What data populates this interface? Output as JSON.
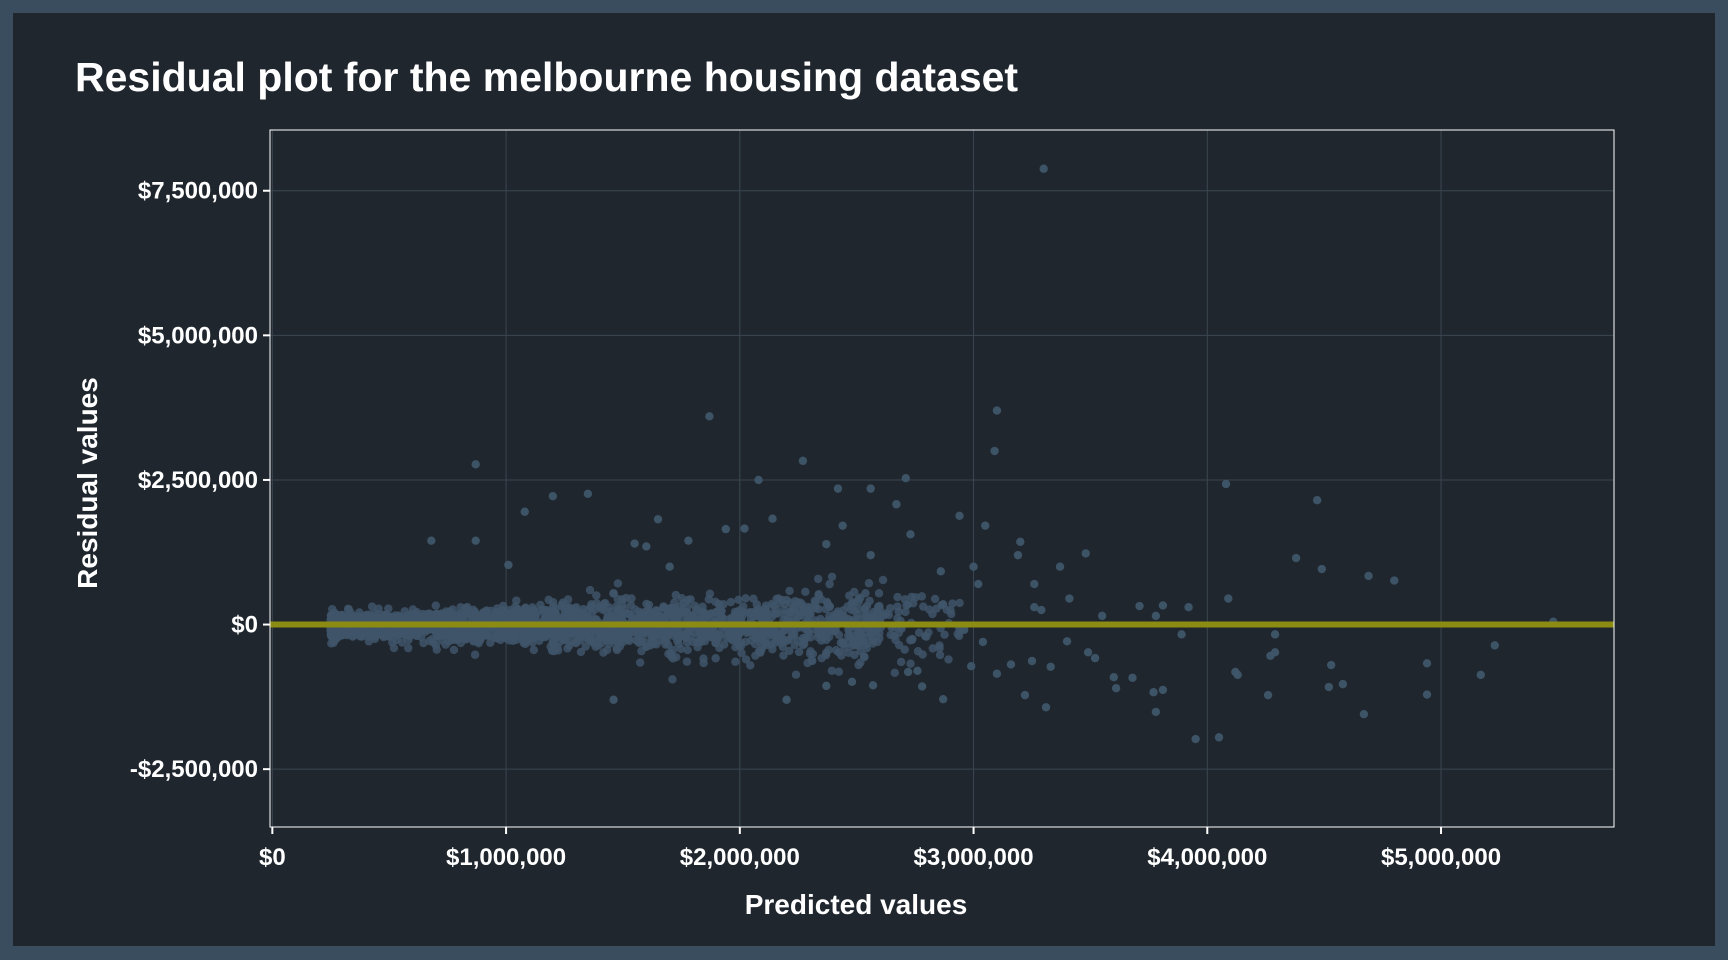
{
  "chart_data": {
    "type": "scatter",
    "title": "Residual plot for the melbourne housing dataset",
    "xlabel": "Predicted values",
    "ylabel": "Residual values",
    "xlim": [
      -10000,
      5740000
    ],
    "ylim": [
      -3500000,
      8550000
    ],
    "x_ticks": [
      0,
      1000000,
      2000000,
      3000000,
      4000000,
      5000000
    ],
    "x_tick_labels": [
      "$0",
      "$1,000,000",
      "$2,000,000",
      "$3,000,000",
      "$4,000,000",
      "$5,000,000"
    ],
    "y_ticks": [
      -2500000,
      0,
      2500000,
      5000000,
      7500000
    ],
    "y_tick_labels": [
      "-$2,500,000",
      "$0",
      "$2,500,000",
      "$5,000,000",
      "$7,500,000"
    ],
    "grid": true,
    "legend": "none",
    "reference_line": {
      "y": 0,
      "color": "#8c8c12"
    },
    "colors": {
      "background": "#1f262e",
      "border": "#3a4d5e",
      "points": "#3f5569",
      "grid": "#3b4650",
      "panel_border": "#ffffff"
    },
    "points": [
      [
        3300000,
        7880000
      ],
      [
        1870000,
        3600000
      ],
      [
        3100000,
        3700000
      ],
      [
        3090000,
        3000000
      ],
      [
        870000,
        2770000
      ],
      [
        2270000,
        2830000
      ],
      [
        2710000,
        2530000
      ],
      [
        2080000,
        2500000
      ],
      [
        4080000,
        2430000
      ],
      [
        2420000,
        2350000
      ],
      [
        2560000,
        2350000
      ],
      [
        1350000,
        2260000
      ],
      [
        1200000,
        2220000
      ],
      [
        4470000,
        2150000
      ],
      [
        2670000,
        2080000
      ],
      [
        1080000,
        1950000
      ],
      [
        2940000,
        1880000
      ],
      [
        1650000,
        1820000
      ],
      [
        2140000,
        1830000
      ],
      [
        3050000,
        1710000
      ],
      [
        2020000,
        1660000
      ],
      [
        2440000,
        1710000
      ],
      [
        1940000,
        1650000
      ],
      [
        2730000,
        1560000
      ],
      [
        680000,
        1450000
      ],
      [
        870000,
        1450000
      ],
      [
        3200000,
        1430000
      ],
      [
        1550000,
        1400000
      ],
      [
        2370000,
        1390000
      ],
      [
        1600000,
        1350000
      ],
      [
        3480000,
        1230000
      ],
      [
        1780000,
        1450000
      ],
      [
        4380000,
        1150000
      ],
      [
        3190000,
        1200000
      ],
      [
        2560000,
        1200000
      ],
      [
        3370000,
        1000000
      ],
      [
        2860000,
        920000
      ],
      [
        4490000,
        960000
      ],
      [
        1010000,
        1030000
      ],
      [
        1700000,
        1000000
      ],
      [
        4690000,
        840000
      ],
      [
        3260000,
        700000
      ],
      [
        4800000,
        760000
      ],
      [
        3000000,
        1000000
      ],
      [
        3410000,
        450000
      ],
      [
        2870000,
        350000
      ],
      [
        4090000,
        450000
      ],
      [
        3020000,
        700000
      ],
      [
        3260000,
        300000
      ],
      [
        3290000,
        250000
      ],
      [
        3710000,
        320000
      ],
      [
        3810000,
        330000
      ],
      [
        3920000,
        300000
      ],
      [
        3550000,
        150000
      ],
      [
        3780000,
        150000
      ],
      [
        5480000,
        50000
      ],
      [
        1460000,
        -1300000
      ],
      [
        2200000,
        -1300000
      ],
      [
        2870000,
        -1290000
      ],
      [
        3950000,
        -1980000
      ],
      [
        4050000,
        -1950000
      ],
      [
        4670000,
        -1550000
      ],
      [
        3780000,
        -1510000
      ],
      [
        3770000,
        -1170000
      ],
      [
        3220000,
        -1220000
      ],
      [
        3310000,
        -1430000
      ],
      [
        3610000,
        -1100000
      ],
      [
        3810000,
        -1130000
      ],
      [
        4260000,
        -1220000
      ],
      [
        4940000,
        -1210000
      ],
      [
        4130000,
        -870000
      ],
      [
        4120000,
        -820000
      ],
      [
        4520000,
        -1080000
      ],
      [
        4580000,
        -1030000
      ],
      [
        5170000,
        -870000
      ],
      [
        4290000,
        -480000
      ],
      [
        4270000,
        -540000
      ],
      [
        5230000,
        -360000
      ],
      [
        4940000,
        -670000
      ],
      [
        4530000,
        -700000
      ],
      [
        4290000,
        -170000
      ],
      [
        3490000,
        -480000
      ],
      [
        3600000,
        -910000
      ],
      [
        3100000,
        -850000
      ],
      [
        2990000,
        -720000
      ],
      [
        2960000,
        -90000
      ],
      [
        2780000,
        -1070000
      ],
      [
        2570000,
        -1050000
      ],
      [
        2720000,
        -820000
      ],
      [
        2480000,
        -990000
      ],
      [
        2370000,
        -1060000
      ],
      [
        3520000,
        -580000
      ],
      [
        3680000,
        -920000
      ],
      [
        3330000,
        -730000
      ],
      [
        3400000,
        -290000
      ],
      [
        3160000,
        -690000
      ],
      [
        3250000,
        -630000
      ],
      [
        3040000,
        -300000
      ],
      [
        3890000,
        -170000
      ],
      [
        2760000,
        -800000
      ]
    ]
  }
}
